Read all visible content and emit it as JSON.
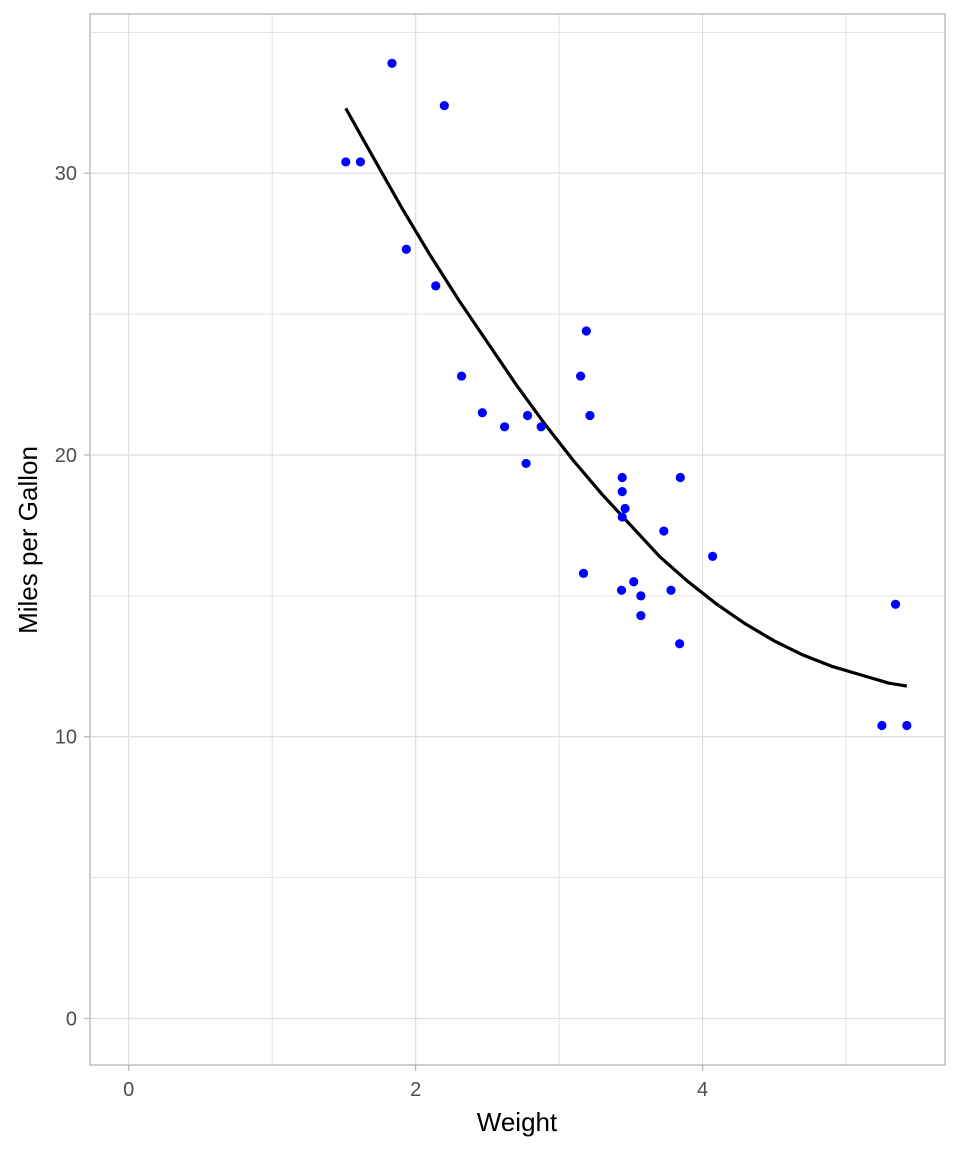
{
  "chart_data": {
    "type": "scatter",
    "title": "",
    "xlabel": "Weight",
    "ylabel": "Miles per Gallon",
    "xlim": [
      -0.27,
      5.69
    ],
    "ylim": [
      -1.65,
      35.65
    ],
    "x_ticks": [
      0,
      2,
      4
    ],
    "y_ticks": [
      0,
      10,
      20,
      30
    ],
    "x_minor_ticks": [
      1,
      3,
      5
    ],
    "y_minor_ticks": [
      5,
      15,
      25,
      35
    ],
    "grid": true,
    "legend": "none",
    "colors": {
      "points": "#0000ff",
      "fit_line": "#000000",
      "grid": "#dedede",
      "panel_border": "#b3b3b3"
    },
    "series": [
      {
        "kind": "points",
        "x": [
          2.62,
          2.875,
          2.32,
          3.215,
          3.44,
          3.46,
          3.57,
          3.19,
          3.15,
          3.44,
          3.44,
          4.07,
          3.73,
          3.78,
          5.25,
          5.424,
          5.345,
          2.2,
          1.615,
          1.835,
          2.465,
          3.52,
          3.435,
          3.84,
          3.845,
          1.935,
          2.14,
          1.513,
          3.17,
          2.77,
          3.57,
          2.78
        ],
        "y": [
          21.0,
          21.0,
          22.8,
          21.4,
          18.7,
          18.1,
          14.3,
          24.4,
          22.8,
          19.2,
          17.8,
          16.4,
          17.3,
          15.2,
          10.4,
          10.4,
          14.7,
          32.4,
          30.4,
          33.9,
          21.5,
          15.5,
          15.2,
          13.3,
          19.2,
          27.3,
          26.0,
          30.4,
          15.8,
          19.7,
          15.0,
          21.4
        ]
      },
      {
        "kind": "smooth_line",
        "x": [
          1.513,
          1.7,
          1.9,
          2.1,
          2.3,
          2.5,
          2.7,
          2.9,
          3.1,
          3.3,
          3.5,
          3.7,
          3.9,
          4.1,
          4.3,
          4.5,
          4.7,
          4.9,
          5.1,
          5.3,
          5.424
        ],
        "y": [
          32.3,
          30.6,
          28.8,
          27.1,
          25.5,
          24.0,
          22.5,
          21.1,
          19.8,
          18.6,
          17.5,
          16.4,
          15.5,
          14.7,
          14.0,
          13.4,
          12.9,
          12.5,
          12.2,
          11.9,
          11.8
        ]
      }
    ]
  }
}
